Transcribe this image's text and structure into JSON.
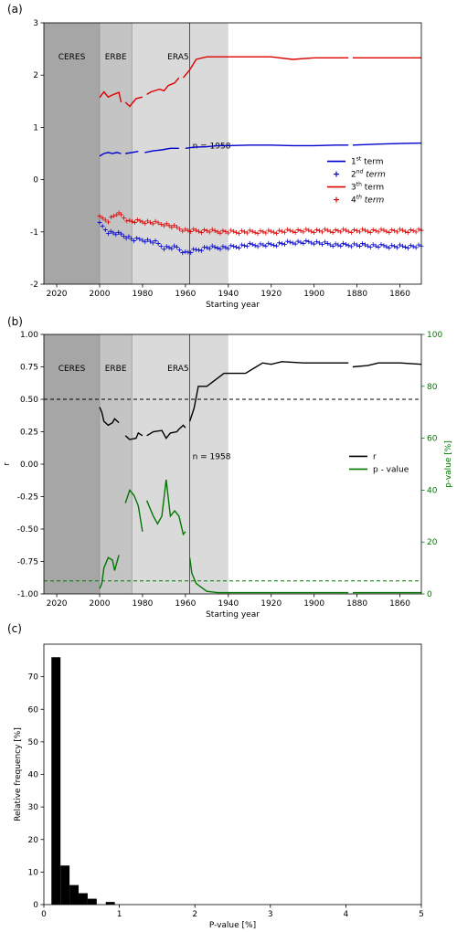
{
  "panels": {
    "a": {
      "label": "(a)"
    },
    "b": {
      "label": "(b)"
    },
    "c": {
      "label": "(c)"
    }
  },
  "chart_data": [
    {
      "id": "a",
      "type": "line",
      "xlabel": "Starting year",
      "ylabel": "",
      "xlim": [
        2026,
        1850
      ],
      "ylim": [
        -2,
        3
      ],
      "x_reversed": true,
      "xticks": [
        2020,
        2000,
        1980,
        1960,
        1940,
        1920,
        1900,
        1880,
        1860
      ],
      "yticks": [
        -2,
        -1,
        0,
        1,
        2,
        3
      ],
      "shaded_regions": [
        {
          "label": "CERES",
          "from": 2026,
          "to": 2000,
          "color": "#a6a6a6"
        },
        {
          "label": "ERBE",
          "from": 2000,
          "to": 1985,
          "color": "#c4c4c4"
        },
        {
          "label": "ERA5",
          "from": 1985,
          "to": 1940,
          "color": "#dadada"
        }
      ],
      "vline": {
        "x": 1958,
        "label": "n = 1958"
      },
      "legend_position": "right",
      "legend": [
        {
          "text": "1",
          "sup": "st",
          "tail": " term",
          "color": "#0000cc",
          "style": "line"
        },
        {
          "text": "2",
          "sup": "nd",
          "tail": " term",
          "color": "#0000cc",
          "style": "plus"
        },
        {
          "text": "3",
          "sup": "th",
          "tail": " term",
          "color": "#dd0000",
          "style": "line"
        },
        {
          "text": "4",
          "sup": "th",
          "tail": " term",
          "color": "#dd0000",
          "style": "plus"
        }
      ],
      "series": [
        {
          "color": "#0000cc",
          "style": "line",
          "segments": [
            [
              [
                2000,
                0.45
              ],
              [
                1998,
                0.5
              ],
              [
                1996,
                0.52
              ],
              [
                1994,
                0.5
              ],
              [
                1992,
                0.52
              ],
              [
                1990,
                0.5
              ]
            ],
            [
              [
                1988,
                0.5
              ],
              [
                1985,
                0.52
              ],
              [
                1982,
                0.54
              ]
            ],
            [
              [
                1979,
                0.52
              ],
              [
                1975,
                0.55
              ],
              [
                1971,
                0.57
              ],
              [
                1967,
                0.6
              ],
              [
                1963,
                0.6
              ]
            ],
            [
              [
                1960,
                0.6
              ],
              [
                1956,
                0.62
              ],
              [
                1950,
                0.63
              ],
              [
                1945,
                0.65
              ],
              [
                1940,
                0.65
              ],
              [
                1930,
                0.66
              ],
              [
                1920,
                0.66
              ],
              [
                1910,
                0.65
              ],
              [
                1900,
                0.65
              ],
              [
                1890,
                0.66
              ],
              [
                1884,
                0.66
              ]
            ],
            [
              [
                1882,
                0.66
              ],
              [
                1870,
                0.68
              ],
              [
                1860,
                0.69
              ],
              [
                1850,
                0.7
              ]
            ]
          ]
        },
        {
          "color": "#0000cc",
          "style": "plus",
          "segments": [
            [
              [
                2000,
                -0.85
              ],
              [
                1996,
                -1.0
              ],
              [
                1990,
                -1.05
              ],
              [
                1984,
                -1.15
              ],
              [
                1980,
                -1.15
              ],
              [
                1974,
                -1.2
              ],
              [
                1970,
                -1.3
              ],
              [
                1964,
                -1.3
              ],
              [
                1960,
                -1.4
              ],
              [
                1955,
                -1.35
              ],
              [
                1950,
                -1.3
              ],
              [
                1945,
                -1.3
              ],
              [
                1940,
                -1.3
              ],
              [
                1930,
                -1.25
              ],
              [
                1920,
                -1.25
              ],
              [
                1910,
                -1.2
              ],
              [
                1900,
                -1.2
              ],
              [
                1890,
                -1.25
              ],
              [
                1884,
                -1.25
              ],
              [
                1880,
                -1.25
              ],
              [
                1870,
                -1.27
              ],
              [
                1860,
                -1.28
              ],
              [
                1850,
                -1.28
              ]
            ]
          ]
        },
        {
          "color": "#dd0000",
          "style": "line",
          "segments": [
            [
              [
                2000,
                1.57
              ],
              [
                1998,
                1.68
              ],
              [
                1996,
                1.58
              ],
              [
                1994,
                1.62
              ],
              [
                1991,
                1.67
              ],
              [
                1990,
                1.48
              ]
            ],
            [
              [
                1988,
                1.48
              ],
              [
                1986,
                1.4
              ],
              [
                1983,
                1.55
              ],
              [
                1980,
                1.58
              ]
            ],
            [
              [
                1978,
                1.63
              ],
              [
                1976,
                1.68
              ],
              [
                1972,
                1.73
              ],
              [
                1970,
                1.7
              ],
              [
                1968,
                1.8
              ],
              [
                1965,
                1.85
              ],
              [
                1963,
                1.95
              ]
            ],
            [
              [
                1961,
                1.95
              ],
              [
                1958,
                2.1
              ],
              [
                1955,
                2.3
              ],
              [
                1950,
                2.35
              ],
              [
                1945,
                2.35
              ],
              [
                1940,
                2.35
              ],
              [
                1930,
                2.35
              ],
              [
                1920,
                2.35
              ],
              [
                1910,
                2.3
              ],
              [
                1900,
                2.33
              ],
              [
                1890,
                2.33
              ],
              [
                1884,
                2.33
              ]
            ],
            [
              [
                1882,
                2.33
              ],
              [
                1870,
                2.33
              ],
              [
                1860,
                2.33
              ],
              [
                1850,
                2.33
              ]
            ]
          ]
        },
        {
          "color": "#dd0000",
          "style": "plus",
          "segments": [
            [
              [
                2000,
                -0.73
              ],
              [
                1996,
                -0.78
              ],
              [
                1992,
                -0.65
              ],
              [
                1990,
                -0.68
              ],
              [
                1986,
                -0.8
              ],
              [
                1980,
                -0.8
              ],
              [
                1974,
                -0.83
              ],
              [
                1970,
                -0.85
              ],
              [
                1964,
                -0.92
              ],
              [
                1960,
                -0.97
              ],
              [
                1955,
                -0.98
              ],
              [
                1950,
                -0.98
              ],
              [
                1940,
                -1.0
              ],
              [
                1930,
                -1.0
              ],
              [
                1920,
                -1.0
              ],
              [
                1910,
                -0.98
              ],
              [
                1900,
                -0.98
              ],
              [
                1890,
                -0.98
              ],
              [
                1884,
                -0.98
              ],
              [
                1880,
                -0.98
              ],
              [
                1870,
                -0.98
              ],
              [
                1860,
                -0.98
              ],
              [
                1850,
                -0.98
              ]
            ]
          ]
        }
      ]
    },
    {
      "id": "b",
      "type": "line",
      "xlabel": "Starting year",
      "ylabel": "r",
      "y2label": "p-value [%]",
      "xlim": [
        2026,
        1850
      ],
      "ylim": [
        -1.0,
        1.0
      ],
      "y2lim": [
        0,
        100
      ],
      "x_reversed": true,
      "xticks": [
        2020,
        2000,
        1980,
        1960,
        1940,
        1920,
        1900,
        1880,
        1860
      ],
      "yticks": [
        "1.00",
        "0.75",
        "0.50",
        "0.25",
        "0.00",
        "-0.25",
        "-0.50",
        "-0.75",
        "-1.00"
      ],
      "y2ticks": [
        0,
        20,
        40,
        60,
        80,
        100
      ],
      "shaded_regions": [
        {
          "label": "CERES",
          "from": 2026,
          "to": 2000,
          "color": "#a6a6a6"
        },
        {
          "label": "ERBE",
          "from": 2000,
          "to": 1985,
          "color": "#c4c4c4"
        },
        {
          "label": "ERA5",
          "from": 1985,
          "to": 1940,
          "color": "#dadada"
        }
      ],
      "vline": {
        "x": 1958,
        "label": "n = 1958"
      },
      "hlines": [
        {
          "axis": "left",
          "value": 0.5,
          "color": "#000000",
          "dash": true
        },
        {
          "axis": "right",
          "value": 5,
          "color": "#007700",
          "dash": true
        }
      ],
      "legend_position": "right",
      "legend": [
        {
          "text": "r",
          "color": "#000000",
          "style": "line"
        },
        {
          "text": "p - value",
          "color": "#007700",
          "style": "line"
        }
      ],
      "series": [
        {
          "name": "r",
          "axis": "left",
          "color": "#000000",
          "segments": [
            [
              [
                2000,
                0.44
              ],
              [
                1999,
                0.4
              ],
              [
                1998,
                0.33
              ],
              [
                1996,
                0.3
              ],
              [
                1994,
                0.32
              ],
              [
                1993,
                0.35
              ],
              [
                1991,
                0.32
              ]
            ],
            [
              [
                1988,
                0.22
              ],
              [
                1986,
                0.19
              ],
              [
                1983,
                0.2
              ],
              [
                1982,
                0.24
              ],
              [
                1980,
                0.22
              ]
            ],
            [
              [
                1978,
                0.22
              ],
              [
                1975,
                0.25
              ],
              [
                1971,
                0.26
              ],
              [
                1969,
                0.2
              ],
              [
                1967,
                0.24
              ],
              [
                1964,
                0.25
              ],
              [
                1963,
                0.27
              ],
              [
                1961,
                0.3
              ],
              [
                1960,
                0.28
              ]
            ],
            [
              [
                1958,
                0.33
              ],
              [
                1956,
                0.43
              ],
              [
                1954,
                0.6
              ],
              [
                1950,
                0.6
              ],
              [
                1946,
                0.65
              ],
              [
                1942,
                0.7
              ],
              [
                1938,
                0.7
              ],
              [
                1932,
                0.7
              ],
              [
                1928,
                0.74
              ],
              [
                1924,
                0.78
              ],
              [
                1920,
                0.77
              ],
              [
                1915,
                0.79
              ],
              [
                1905,
                0.78
              ],
              [
                1895,
                0.78
              ],
              [
                1884,
                0.78
              ]
            ],
            [
              [
                1882,
                0.75
              ],
              [
                1875,
                0.76
              ],
              [
                1870,
                0.78
              ],
              [
                1860,
                0.78
              ],
              [
                1850,
                0.77
              ]
            ]
          ]
        },
        {
          "name": "p - value",
          "axis": "right",
          "color": "#007700",
          "segments": [
            [
              [
                2000,
                2
              ],
              [
                1999,
                4
              ],
              [
                1998,
                10
              ],
              [
                1996,
                14
              ],
              [
                1994,
                13
              ],
              [
                1993,
                9
              ],
              [
                1991,
                15
              ]
            ],
            [
              [
                1988,
                35
              ],
              [
                1986,
                40
              ],
              [
                1984,
                38
              ],
              [
                1982,
                34
              ],
              [
                1980,
                24
              ]
            ],
            [
              [
                1978,
                36
              ],
              [
                1975,
                30
              ],
              [
                1973,
                27
              ],
              [
                1971,
                30
              ],
              [
                1969,
                44
              ],
              [
                1967,
                30
              ],
              [
                1965,
                32
              ],
              [
                1963,
                30
              ],
              [
                1961,
                23
              ],
              [
                1960,
                24
              ]
            ],
            [
              [
                1958,
                14
              ],
              [
                1957,
                8
              ],
              [
                1955,
                4
              ],
              [
                1950,
                1
              ],
              [
                1945,
                0.5
              ],
              [
                1940,
                0.5
              ],
              [
                1930,
                0.5
              ],
              [
                1920,
                0.5
              ],
              [
                1900,
                0.5
              ],
              [
                1884,
                0.5
              ]
            ],
            [
              [
                1882,
                0.5
              ],
              [
                1870,
                0.5
              ],
              [
                1860,
                0.5
              ],
              [
                1850,
                0.5
              ]
            ]
          ]
        }
      ]
    },
    {
      "id": "c",
      "type": "bar",
      "xlabel": "P-value [%]",
      "ylabel": "Relative frequency [%]",
      "xlim": [
        0,
        5
      ],
      "ylim": [
        0,
        80
      ],
      "xticks": [
        0,
        1,
        2,
        3,
        4,
        5
      ],
      "yticks": [
        0,
        10,
        20,
        30,
        40,
        50,
        60,
        70
      ],
      "bin_width": 0.12,
      "bins": [
        {
          "x": 0.1,
          "value": 76
        },
        {
          "x": 0.22,
          "value": 12
        },
        {
          "x": 0.34,
          "value": 6
        },
        {
          "x": 0.46,
          "value": 3.5
        },
        {
          "x": 0.58,
          "value": 1.8
        },
        {
          "x": 0.7,
          "value": 0
        },
        {
          "x": 0.82,
          "value": 0.8
        }
      ]
    }
  ]
}
